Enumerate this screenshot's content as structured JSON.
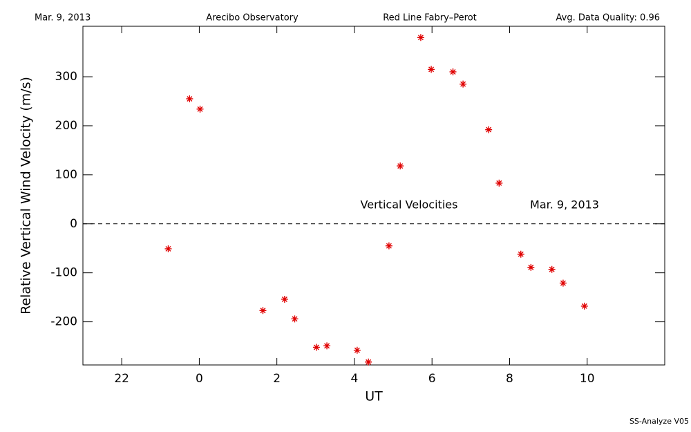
{
  "chart_data": {
    "type": "scatter",
    "header": [
      "Mar. 9, 2013",
      "Arecibo Observatory",
      "Red Line Fabry–Perot",
      "Avg. Data Quality: 0.96"
    ],
    "annotations": [
      "Vertical Velocities",
      "Mar. 9, 2013"
    ],
    "footer": "SS-Analyze V05",
    "xlabel": "UT",
    "ylabel": "Relative Vertical Wind Velocity (m/s)",
    "color": "#e00000",
    "x": [
      -0.8,
      -0.25,
      0.02,
      1.64,
      2.2,
      2.46,
      3.02,
      3.29,
      4.07,
      4.36,
      4.89,
      5.18,
      5.71,
      5.98,
      6.54,
      6.8,
      7.46,
      7.73,
      8.29,
      8.55,
      9.09,
      9.38,
      9.93
    ],
    "values": [
      -51,
      255,
      234,
      -177,
      -154,
      -194,
      -252,
      -249,
      -258,
      -282,
      -45,
      118,
      380,
      315,
      310,
      285,
      192,
      83,
      -62,
      -89,
      -93,
      -121,
      -168
    ],
    "xlim": [
      -3,
      12
    ],
    "xticks": [
      {
        "value": -2,
        "label": "22"
      },
      0,
      2,
      4,
      6,
      8,
      10
    ],
    "ylim": [
      -288,
      403
    ],
    "yticks": [
      -200,
      -100,
      0,
      100,
      200,
      300
    ]
  }
}
